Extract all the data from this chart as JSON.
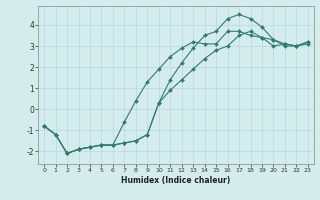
{
  "xlabel": "Humidex (Indice chaleur)",
  "background_color": "#d4ecec",
  "line_color": "#2e7d6e",
  "grid_color": "#b8d8d8",
  "xlim": [
    -0.5,
    23.5
  ],
  "ylim": [
    -2.6,
    4.9
  ],
  "xticks": [
    0,
    1,
    2,
    3,
    4,
    5,
    6,
    7,
    8,
    9,
    10,
    11,
    12,
    13,
    14,
    15,
    16,
    17,
    18,
    19,
    20,
    21,
    22,
    23
  ],
  "yticks": [
    -2,
    -1,
    0,
    1,
    2,
    3,
    4
  ],
  "line1_x": [
    0,
    1,
    2,
    3,
    4,
    5,
    6,
    7,
    8,
    9,
    10,
    11,
    12,
    13,
    14,
    15,
    16,
    17,
    18,
    19,
    20,
    21,
    22,
    23
  ],
  "line1_y": [
    -0.8,
    -1.2,
    -2.1,
    -1.9,
    -1.8,
    -1.7,
    -1.7,
    -1.6,
    -1.5,
    -1.2,
    0.3,
    1.4,
    2.2,
    2.9,
    3.5,
    3.7,
    4.3,
    4.5,
    4.3,
    3.9,
    3.3,
    3.1,
    3.0,
    3.1
  ],
  "line2_x": [
    0,
    1,
    2,
    3,
    4,
    5,
    6,
    7,
    8,
    9,
    10,
    11,
    12,
    13,
    14,
    15,
    16,
    17,
    18,
    19,
    20,
    21,
    22,
    23
  ],
  "line2_y": [
    -0.8,
    -1.2,
    -2.1,
    -1.9,
    -1.8,
    -1.7,
    -1.7,
    -0.6,
    0.4,
    1.3,
    1.9,
    2.5,
    2.9,
    3.2,
    3.1,
    3.1,
    3.7,
    3.7,
    3.5,
    3.4,
    3.0,
    3.1,
    3.0,
    3.2
  ],
  "line3_x": [
    0,
    1,
    2,
    3,
    4,
    5,
    6,
    7,
    8,
    9,
    10,
    11,
    12,
    13,
    14,
    15,
    16,
    17,
    18,
    19,
    20,
    21,
    22,
    23
  ],
  "line3_y": [
    -0.8,
    -1.2,
    -2.1,
    -1.9,
    -1.8,
    -1.7,
    -1.7,
    -1.6,
    -1.5,
    -1.2,
    0.3,
    0.9,
    1.4,
    1.9,
    2.4,
    2.8,
    3.0,
    3.5,
    3.7,
    3.4,
    3.3,
    3.0,
    3.0,
    3.2
  ]
}
